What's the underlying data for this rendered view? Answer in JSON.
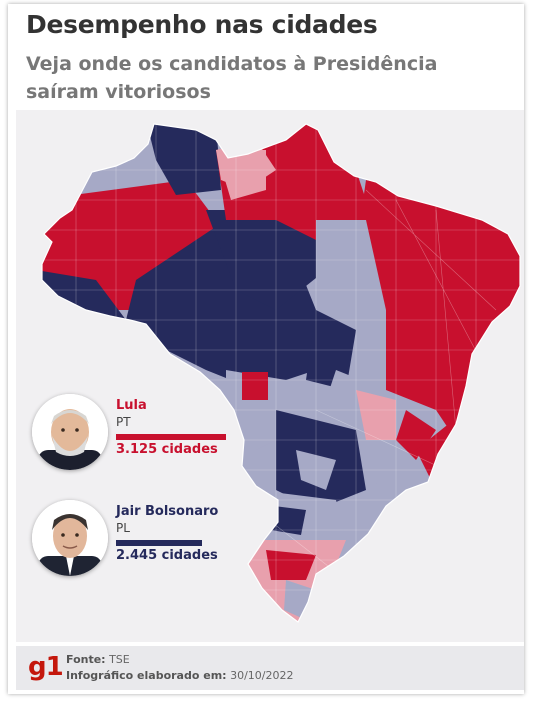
{
  "header": {
    "title": "Desempenho nas cidades",
    "subtitle": "Veja onde os candidatos à Presidência saíram vitoriosos"
  },
  "colors": {
    "lula_strong": "#c8102e",
    "lula_light": "#e8a0ad",
    "bolsonaro_strong": "#252a5c",
    "bolsonaro_light": "#a6a9c6",
    "background": "#f1f0f2"
  },
  "candidates": [
    {
      "name": "Lula",
      "party": "PT",
      "count_label": "3.125 cidades",
      "cities": 3125,
      "color": "#c8102e",
      "photo_icon": "lula-portrait"
    },
    {
      "name": "Jair Bolsonaro",
      "party": "PL",
      "count_label": "2.445 cidades",
      "cities": 2445,
      "color": "#252a5c",
      "photo_icon": "bolsonaro-portrait"
    }
  ],
  "map": {
    "description_icon": "brazil-municipalities-map"
  },
  "footer": {
    "logo": "g1",
    "source_label": "Fonte:",
    "source_value": "TSE",
    "date_label": "Infográfico elaborado em:",
    "date_value": "30/10/2022"
  }
}
